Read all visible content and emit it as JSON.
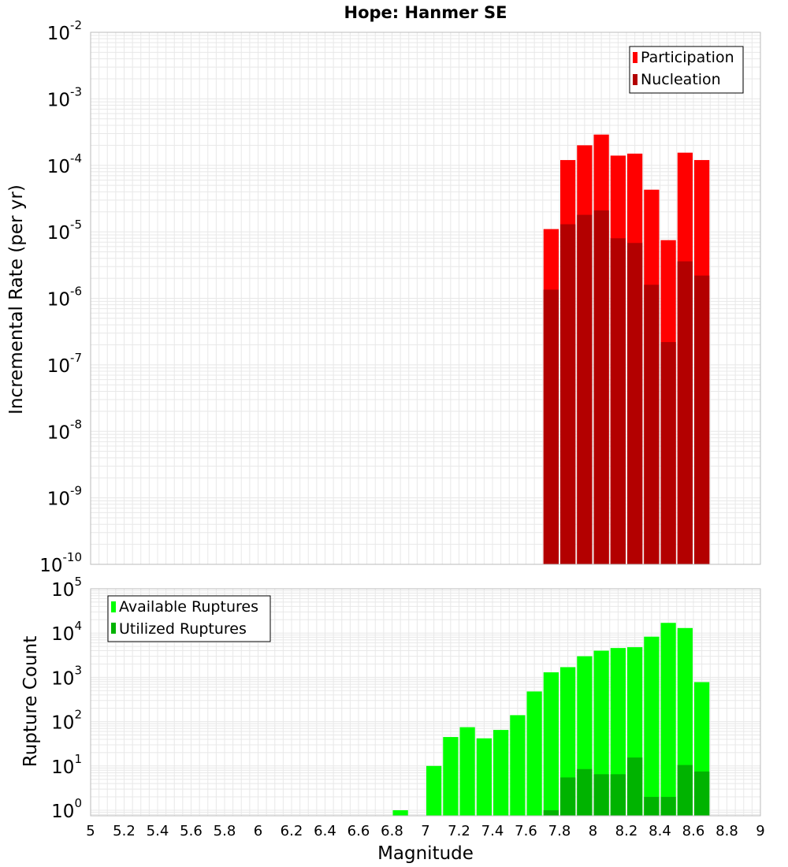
{
  "colors": {
    "participation": "#ff0000",
    "nucleation": "#b30000",
    "available": "#00ff00",
    "utilized": "#00b300",
    "grid": "#e8e8e8",
    "axis_border": "#bbbbbb"
  },
  "chart_data": [
    {
      "type": "bar",
      "title": "Hope: Hanmer SE",
      "xlabel": "",
      "ylabel": "Incremental Rate (per yr)",
      "yscale": "log",
      "xlim": [
        5,
        9
      ],
      "ylim": [
        1e-10,
        0.01
      ],
      "grid": true,
      "legend_position": "top-right",
      "bar_width": 0.1,
      "x": [
        7.75,
        7.85,
        7.95,
        8.05,
        8.15,
        8.25,
        8.35,
        8.45,
        8.55,
        8.65
      ],
      "series": [
        {
          "name": "Participation",
          "color": "#ff0000",
          "values": [
            1.1e-05,
            0.00012,
            0.0002,
            0.00029,
            0.00014,
            0.00015,
            4.3e-05,
            7.5e-06,
            0.000155,
            0.00012
          ]
        },
        {
          "name": "Nucleation",
          "color": "#b30000",
          "values": [
            1.35e-06,
            1.3e-05,
            1.8e-05,
            2.1e-05,
            8e-06,
            6.8e-06,
            1.6e-06,
            2.2e-07,
            3.6e-06,
            2.2e-06
          ]
        }
      ],
      "ytick_labels": [
        {
          "base": "10",
          "exp": "-10"
        },
        {
          "base": "10",
          "exp": "-9"
        },
        {
          "base": "10",
          "exp": "-8"
        },
        {
          "base": "10",
          "exp": "-7"
        },
        {
          "base": "10",
          "exp": "-6"
        },
        {
          "base": "10",
          "exp": "-5"
        },
        {
          "base": "10",
          "exp": "-4"
        },
        {
          "base": "10",
          "exp": "-3"
        },
        {
          "base": "10",
          "exp": "-2"
        }
      ]
    },
    {
      "type": "bar",
      "title": "",
      "xlabel": "Magnitude",
      "ylabel": "Rupture Count",
      "yscale": "log",
      "xlim": [
        5,
        9
      ],
      "ylim": [
        0.75,
        100000.0
      ],
      "grid": true,
      "legend_position": "top-left",
      "bar_width": 0.1,
      "x": [
        6.85,
        6.95,
        7.05,
        7.15,
        7.25,
        7.35,
        7.45,
        7.55,
        7.65,
        7.75,
        7.85,
        7.95,
        8.05,
        8.15,
        8.25,
        8.35,
        8.45,
        8.55,
        8.65
      ],
      "series": [
        {
          "name": "Available Ruptures",
          "color": "#00ff00",
          "values": [
            1,
            0,
            10,
            45,
            75,
            42,
            65,
            140,
            480,
            1300,
            1700,
            3000,
            4000,
            4600,
            4800,
            8300,
            17000,
            13000,
            780
          ]
        },
        {
          "name": "Utilized Ruptures",
          "color": "#00b300",
          "values": [
            0,
            0,
            0,
            0,
            0,
            0,
            0,
            0,
            0,
            1,
            5.5,
            8.5,
            6.5,
            6.5,
            15.5,
            2,
            2,
            10.5,
            7.5
          ]
        }
      ],
      "xtick_labels": [
        "5",
        "5.2",
        "5.4",
        "5.6",
        "5.8",
        "6",
        "6.2",
        "6.4",
        "6.6",
        "6.8",
        "7",
        "7.2",
        "7.4",
        "7.6",
        "7.8",
        "8",
        "8.2",
        "8.4",
        "8.6",
        "8.8",
        "9"
      ],
      "ytick_labels": [
        {
          "base": "10",
          "exp": "0"
        },
        {
          "base": "10",
          "exp": "1"
        },
        {
          "base": "10",
          "exp": "2"
        },
        {
          "base": "10",
          "exp": "3"
        },
        {
          "base": "10",
          "exp": "4"
        },
        {
          "base": "10",
          "exp": "5"
        }
      ]
    }
  ]
}
